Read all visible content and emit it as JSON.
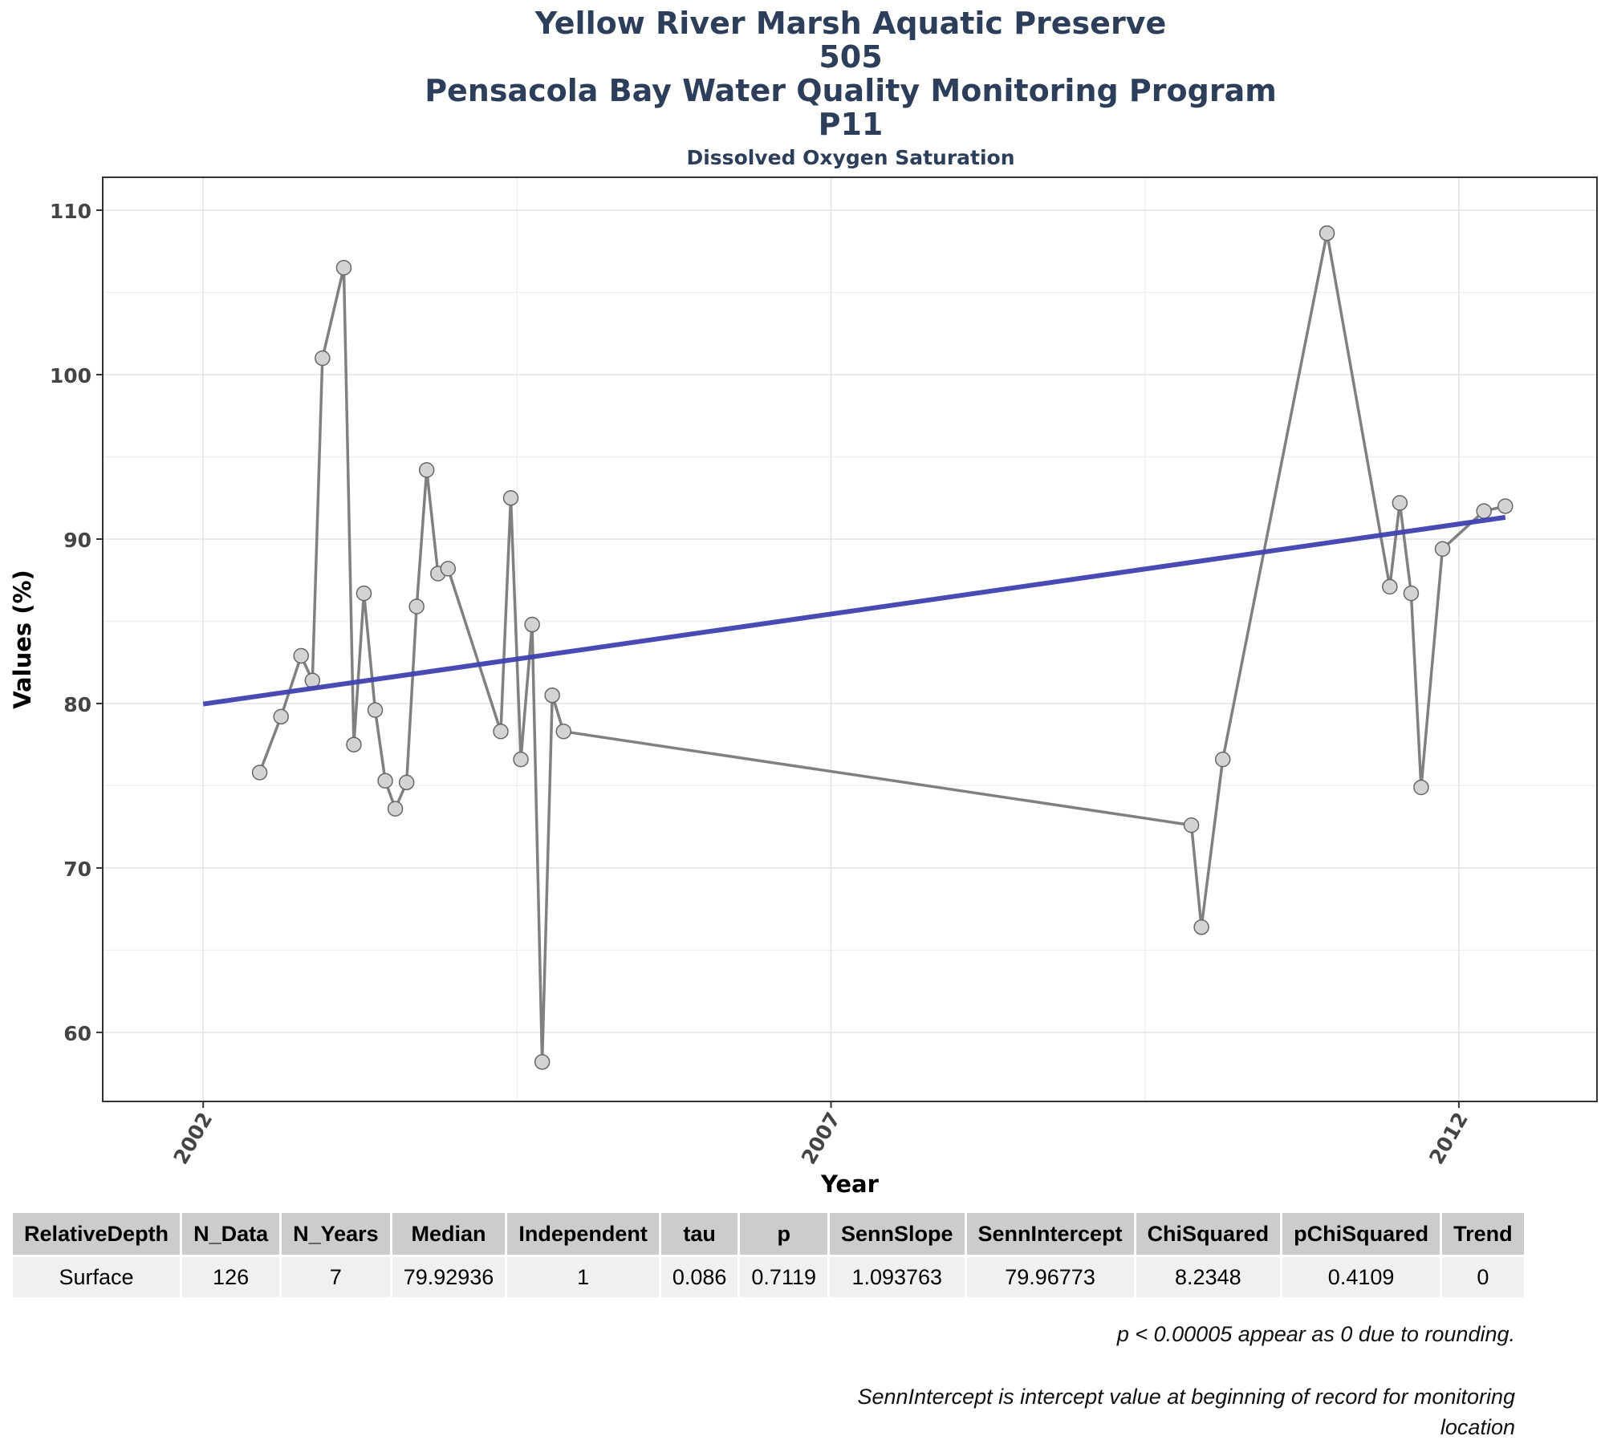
{
  "titles": {
    "line1": "Yellow River Marsh Aquatic Preserve",
    "line2": "505",
    "line3": "Pensacola Bay Water Quality Monitoring Program",
    "line4": "P11",
    "subtitle": "Dissolved Oxygen Saturation"
  },
  "chart_data": {
    "type": "line",
    "xlabel": "Year",
    "ylabel": "Values (%)",
    "xlim": [
      2001.2,
      2013.1
    ],
    "ylim": [
      55.8,
      112.0
    ],
    "x_ticks": [
      2002,
      2007,
      2012
    ],
    "y_ticks": [
      60,
      70,
      80,
      90,
      100,
      110
    ],
    "grid": true,
    "series": [
      {
        "style": "data",
        "color": "#808080",
        "points": [
          [
            2002.45,
            75.8
          ],
          [
            2002.62,
            79.2
          ],
          [
            2002.78,
            82.9
          ],
          [
            2002.87,
            81.4
          ],
          [
            2002.95,
            101.0
          ],
          [
            2003.12,
            106.5
          ],
          [
            2003.2,
            77.5
          ],
          [
            2003.28,
            86.7
          ],
          [
            2003.37,
            79.6
          ],
          [
            2003.45,
            75.3
          ],
          [
            2003.53,
            73.6
          ],
          [
            2003.62,
            75.2
          ],
          [
            2003.7,
            85.9
          ],
          [
            2003.78,
            94.2
          ],
          [
            2003.87,
            87.9
          ],
          [
            2003.95,
            88.2
          ],
          [
            2004.37,
            78.3
          ],
          [
            2004.45,
            92.5
          ],
          [
            2004.53,
            76.6
          ],
          [
            2004.62,
            84.8
          ],
          [
            2004.7,
            58.2
          ],
          [
            2004.78,
            80.5
          ],
          [
            2004.87,
            78.3
          ],
          [
            2009.87,
            72.6
          ],
          [
            2009.95,
            66.4
          ],
          [
            2010.12,
            76.6
          ],
          [
            2010.95,
            108.6
          ],
          [
            2011.45,
            87.1
          ],
          [
            2011.53,
            92.2
          ],
          [
            2011.62,
            86.7
          ],
          [
            2011.7,
            74.9
          ],
          [
            2011.87,
            89.4
          ],
          [
            2012.2,
            91.7
          ],
          [
            2012.37,
            92.0
          ]
        ]
      },
      {
        "style": "trend",
        "color": "#4040b0",
        "points": [
          [
            2002.0,
            79.97
          ],
          [
            2012.37,
            91.32
          ]
        ]
      }
    ]
  },
  "table": {
    "headers": [
      "RelativeDepth",
      "N_Data",
      "N_Years",
      "Median",
      "Independent",
      "tau",
      "p",
      "SennSlope",
      "SennIntercept",
      "ChiSquared",
      "pChiSquared",
      "Trend"
    ],
    "rows": [
      [
        "Surface",
        "126",
        "7",
        "79.92936",
        "1",
        "0.086",
        "0.7119",
        "1.093763",
        "79.96773",
        "8.2348",
        "0.4109",
        "0"
      ]
    ]
  },
  "notes": {
    "line1": "p < 0.00005 appear as 0 due to rounding.",
    "line2": "SennIntercept is intercept value at beginning of record for monitoring location"
  }
}
